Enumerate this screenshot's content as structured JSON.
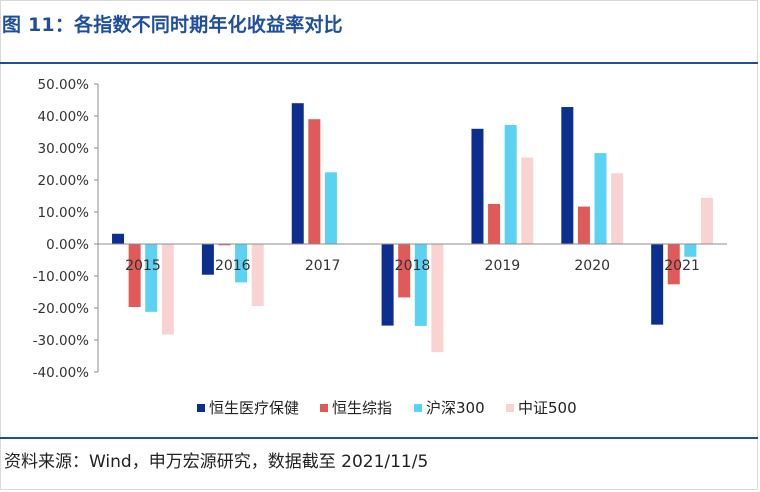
{
  "header": {
    "title": "图 11：各指数不同时期年化收益率对比"
  },
  "footer": {
    "source": "资料来源：Wind，申万宏源研究，数据截至 2021/11/5"
  },
  "chart_data": {
    "type": "bar",
    "categories": [
      "2015",
      "2016",
      "2017",
      "2018",
      "2019",
      "2020",
      "2021"
    ],
    "series": [
      {
        "name": "恒生医疗保健",
        "color": "#0c2f8f",
        "values": [
          3.2,
          -9.6,
          44.0,
          -25.5,
          36.0,
          42.8,
          -25.2
        ]
      },
      {
        "name": "恒生综指",
        "color": "#e05a5a",
        "values": [
          -19.7,
          -0.4,
          39.0,
          -16.7,
          12.5,
          11.7,
          -12.6
        ]
      },
      {
        "name": "沪深300",
        "color": "#5bd2f2",
        "values": [
          -21.2,
          -12.0,
          22.4,
          -25.6,
          37.2,
          28.4,
          -4.0
        ]
      },
      {
        "name": "中证500",
        "color": "#f9d2d2",
        "values": [
          -28.3,
          -19.4,
          0,
          -33.8,
          27.0,
          22.1,
          14.4
        ]
      }
    ],
    "ylim": [
      -40,
      50
    ],
    "yticks": [
      "50.00%",
      "40.00%",
      "30.00%",
      "20.00%",
      "10.00%",
      "0.00%",
      "-10.00%",
      "-20.00%",
      "-30.00%",
      "-40.00%"
    ],
    "legend": "bottom",
    "grid": false
  }
}
